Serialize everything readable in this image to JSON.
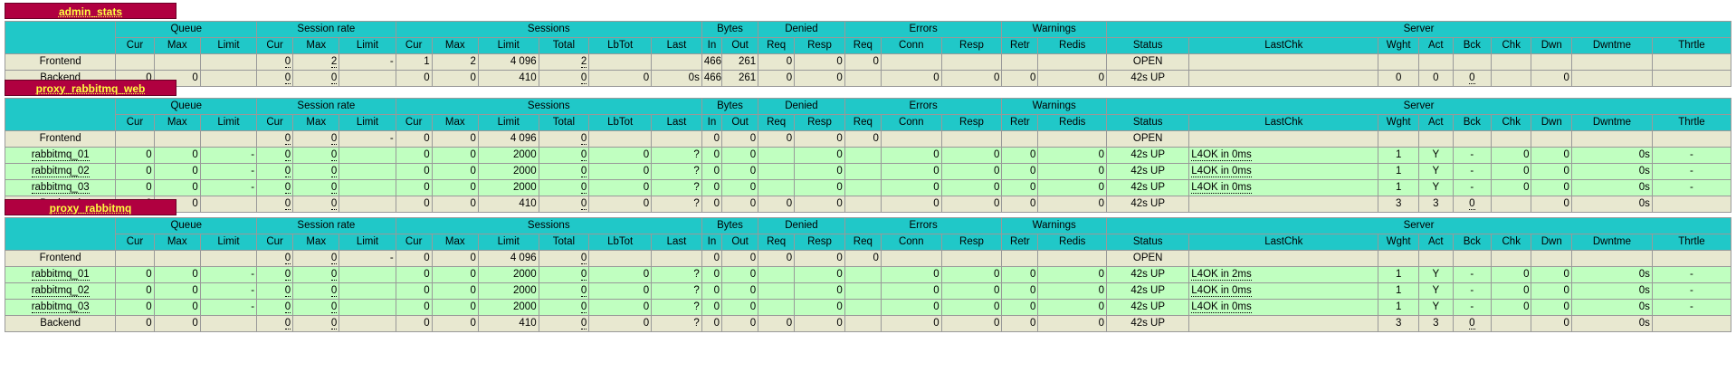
{
  "headers": {
    "groups": [
      "Queue",
      "Session rate",
      "Sessions",
      "Bytes",
      "Denied",
      "Errors",
      "Warnings",
      "Server"
    ],
    "sub": [
      "Cur",
      "Max",
      "Limit",
      "Cur",
      "Max",
      "Limit",
      "Cur",
      "Max",
      "Limit",
      "Total",
      "LbTot",
      "Last",
      "In",
      "Out",
      "Req",
      "Resp",
      "Req",
      "Conn",
      "Resp",
      "Retr",
      "Redis",
      "Status",
      "LastChk",
      "Wght",
      "Act",
      "Bck",
      "Chk",
      "Dwn",
      "Dwntme",
      "Thrtle"
    ]
  },
  "proxies": [
    {
      "name": "admin_stats",
      "rows": [
        {
          "type": "front",
          "cells": [
            "Frontend",
            "",
            "",
            "",
            "0",
            "2",
            "-",
            "1",
            "2",
            "4 096",
            "2",
            "",
            "",
            "466",
            "261",
            "0",
            "0",
            "0",
            "",
            "",
            "",
            "",
            "OPEN",
            "",
            "",
            "",
            "",
            "",
            "",
            "",
            ""
          ]
        },
        {
          "type": "back",
          "cells": [
            "Backend",
            "0",
            "0",
            "",
            "0",
            "0",
            "",
            "0",
            "0",
            "410",
            "0",
            "0",
            "0s",
            "466",
            "261",
            "0",
            "0",
            "",
            "0",
            "0",
            "0",
            "0",
            "42s UP",
            "",
            "0",
            "0",
            "0",
            "",
            "0",
            "",
            ""
          ]
        }
      ]
    },
    {
      "name": "proxy_rabbitmq_web",
      "rows": [
        {
          "type": "front",
          "cells": [
            "Frontend",
            "",
            "",
            "",
            "0",
            "0",
            "-",
            "0",
            "0",
            "4 096",
            "0",
            "",
            "",
            "0",
            "0",
            "0",
            "0",
            "0",
            "",
            "",
            "",
            "",
            "OPEN",
            "",
            "",
            "",
            "",
            "",
            "",
            "",
            ""
          ]
        },
        {
          "type": "srv",
          "cells": [
            "rabbitmq_01",
            "0",
            "0",
            "-",
            "0",
            "0",
            "",
            "0",
            "0",
            "2000",
            "0",
            "0",
            "?",
            "0",
            "0",
            "",
            "0",
            "",
            "0",
            "0",
            "0",
            "0",
            "42s UP",
            "L4OK in 0ms",
            "1",
            "Y",
            "-",
            "0",
            "0",
            "0s",
            "-"
          ]
        },
        {
          "type": "srv",
          "cells": [
            "rabbitmq_02",
            "0",
            "0",
            "-",
            "0",
            "0",
            "",
            "0",
            "0",
            "2000",
            "0",
            "0",
            "?",
            "0",
            "0",
            "",
            "0",
            "",
            "0",
            "0",
            "0",
            "0",
            "42s UP",
            "L4OK in 0ms",
            "1",
            "Y",
            "-",
            "0",
            "0",
            "0s",
            "-"
          ]
        },
        {
          "type": "srv",
          "cells": [
            "rabbitmq_03",
            "0",
            "0",
            "-",
            "0",
            "0",
            "",
            "0",
            "0",
            "2000",
            "0",
            "0",
            "?",
            "0",
            "0",
            "",
            "0",
            "",
            "0",
            "0",
            "0",
            "0",
            "42s UP",
            "L4OK in 0ms",
            "1",
            "Y",
            "-",
            "0",
            "0",
            "0s",
            "-"
          ]
        },
        {
          "type": "back",
          "cells": [
            "Backend",
            "0",
            "0",
            "",
            "0",
            "0",
            "",
            "0",
            "0",
            "410",
            "0",
            "0",
            "?",
            "0",
            "0",
            "0",
            "0",
            "",
            "0",
            "0",
            "0",
            "0",
            "42s UP",
            "",
            "3",
            "3",
            "0",
            "",
            "0",
            "0s",
            ""
          ]
        }
      ]
    },
    {
      "name": "proxy_rabbitmq",
      "rows": [
        {
          "type": "front",
          "cells": [
            "Frontend",
            "",
            "",
            "",
            "0",
            "0",
            "-",
            "0",
            "0",
            "4 096",
            "0",
            "",
            "",
            "0",
            "0",
            "0",
            "0",
            "0",
            "",
            "",
            "",
            "",
            "OPEN",
            "",
            "",
            "",
            "",
            "",
            "",
            "",
            ""
          ]
        },
        {
          "type": "srv",
          "cells": [
            "rabbitmq_01",
            "0",
            "0",
            "-",
            "0",
            "0",
            "",
            "0",
            "0",
            "2000",
            "0",
            "0",
            "?",
            "0",
            "0",
            "",
            "0",
            "",
            "0",
            "0",
            "0",
            "0",
            "42s UP",
            "L4OK in 2ms",
            "1",
            "Y",
            "-",
            "0",
            "0",
            "0s",
            "-"
          ]
        },
        {
          "type": "srv",
          "cells": [
            "rabbitmq_02",
            "0",
            "0",
            "-",
            "0",
            "0",
            "",
            "0",
            "0",
            "2000",
            "0",
            "0",
            "?",
            "0",
            "0",
            "",
            "0",
            "",
            "0",
            "0",
            "0",
            "0",
            "42s UP",
            "L4OK in 0ms",
            "1",
            "Y",
            "-",
            "0",
            "0",
            "0s",
            "-"
          ]
        },
        {
          "type": "srv",
          "cells": [
            "rabbitmq_03",
            "0",
            "0",
            "-",
            "0",
            "0",
            "",
            "0",
            "0",
            "2000",
            "0",
            "0",
            "?",
            "0",
            "0",
            "",
            "0",
            "",
            "0",
            "0",
            "0",
            "0",
            "42s UP",
            "L4OK in 0ms",
            "1",
            "Y",
            "-",
            "0",
            "0",
            "0s",
            "-"
          ]
        },
        {
          "type": "back",
          "cells": [
            "Backend",
            "0",
            "0",
            "",
            "0",
            "0",
            "",
            "0",
            "0",
            "410",
            "0",
            "0",
            "?",
            "0",
            "0",
            "0",
            "0",
            "",
            "0",
            "0",
            "0",
            "0",
            "42s UP",
            "",
            "3",
            "3",
            "0",
            "",
            "0",
            "0s",
            ""
          ]
        }
      ]
    }
  ],
  "colors": {
    "header": "#20c8c8",
    "proxy_tab": "#b00040",
    "proxy_tab_text": "#ffff40",
    "frontend_row": "#e8e8d0",
    "server_row": "#c0ffc0"
  }
}
